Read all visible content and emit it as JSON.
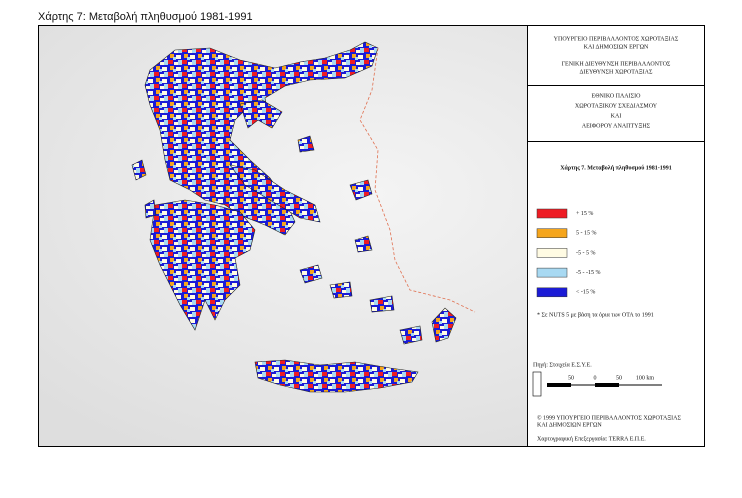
{
  "caption": "Χάρτης 7: Μεταβολή πληθυσμού 1981-1991",
  "panel": {
    "ministry": [
      "ΥΠΟΥΡΓΕΙΟ ΠΕΡΙΒΑΛΛΟΝΤΟΣ ΧΩΡΟΤΑΞΙΑΣ",
      "ΚΑΙ ΔΗΜΟΣΙΩΝ ΕΡΓΩΝ"
    ],
    "directorate": [
      "ΓΕΝΙΚΗ ΔΙΕΥΘΥΝΣΗ ΠΕΡΙΒΑΛΛΟΝΤΟΣ",
      "ΔΙΕΥΘΥΝΣΗ ΧΩΡΟΤΑΞΙΑΣ"
    ],
    "framework": [
      "ΕΘΝΙΚΟ ΠΛΑΙΣΙΟ",
      "ΧΩΡΟΤΑΞΙΚΟΥ ΣΧΕΔΙΑΣΜΟΥ",
      "ΚΑΙ",
      "ΑΕΙΦΟΡΟΥ ΑΝΑΠΤΥΞΗΣ"
    ],
    "map_title": "Χάρτης 7. Μεταβολή πληθυσμού 1981-1991",
    "legend": [
      {
        "label": "+ 15 %",
        "color": "#ee1c24"
      },
      {
        "label": "5  -  15 %",
        "color": "#f5a51c"
      },
      {
        "label": "-5  -  5 %",
        "color": "#fffbe3"
      },
      {
        "label": "-5  -  -15 %",
        "color": "#a8d9f2"
      },
      {
        "label": "<  -15 %",
        "color": "#1b1bd6"
      }
    ],
    "note": "* Σε NUTS 5 με βάση τα όρια των ΟΤΑ το 1991",
    "source": "Πηγή: Στοιχεία Ε.Σ.Υ.Ε.",
    "scale_labels": [
      "50",
      "0",
      "50",
      "100 km"
    ],
    "copyright": [
      "© 1999 ΥΠΟΥΡΓΕΙΟ ΠΕΡΙΒΑΛΛΟΝΤΟΣ ΧΩΡΟΤΑΞΙΑΣ",
      "ΚΑΙ ΔΗΜΟΣΙΩΝ ΕΡΓΩΝ"
    ],
    "cartography": "Χαρτογραφική Επεξεργασία: TERRA Ε.Π.Ε."
  }
}
